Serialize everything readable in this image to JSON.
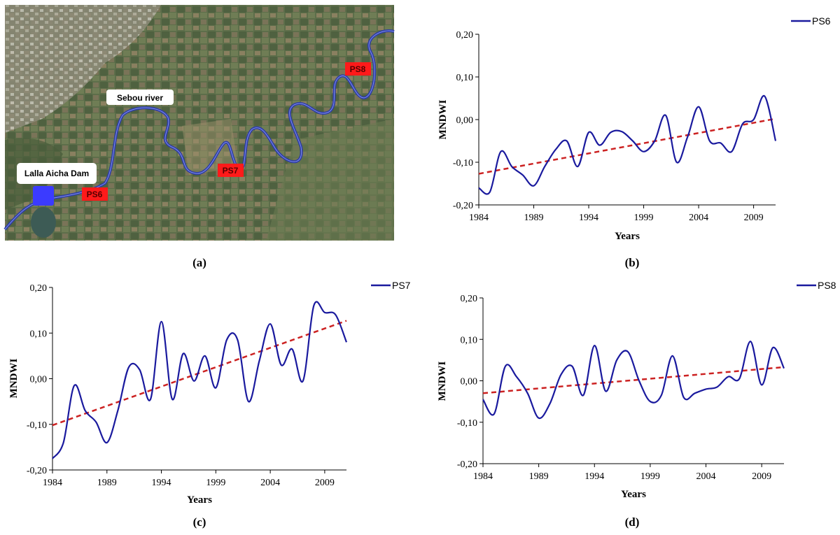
{
  "colors": {
    "series_line": "#1a1a9e",
    "trend_line": "#cc2222",
    "river": "#2b3aa8",
    "site_box": "#ff1a1a",
    "dam": "#3b3bff"
  },
  "map": {
    "caption": "(a)",
    "labels": {
      "river": "Sebou river",
      "dam": "Lalla Aicha Dam"
    },
    "sites": [
      "PS6",
      "PS7",
      "PS8"
    ]
  },
  "chart_data": [
    {
      "type": "line",
      "caption": "(b)",
      "xlabel": "Years",
      "ylabel": "MNDWI",
      "xlim": [
        1984,
        2011
      ],
      "ylim": [
        -0.2,
        0.2
      ],
      "xticks": [
        "1984",
        "1989",
        "1994",
        "1999",
        "2004",
        "2009"
      ],
      "yticks": [
        "-0,20",
        "-0,10",
        "0,00",
        "0,10",
        "0,20"
      ],
      "legend_position": "top-right",
      "series": [
        {
          "name": "PS6",
          "x": [
            1984,
            1985,
            1986,
            1987,
            1988,
            1989,
            1990,
            1991,
            1992,
            1993,
            1994,
            1995,
            1996,
            1997,
            1998,
            1999,
            2000,
            2001,
            2002,
            2003,
            2004,
            2005,
            2006,
            2007,
            2008,
            2009,
            2010,
            2011
          ],
          "y": [
            -0.16,
            -0.17,
            -0.075,
            -0.11,
            -0.13,
            -0.155,
            -0.11,
            -0.07,
            -0.05,
            -0.11,
            -0.03,
            -0.06,
            -0.03,
            -0.028,
            -0.05,
            -0.075,
            -0.05,
            0.01,
            -0.1,
            -0.04,
            0.03,
            -0.05,
            -0.055,
            -0.075,
            -0.01,
            0.0,
            0.055,
            -0.05
          ]
        }
      ],
      "trend": {
        "x": [
          1984,
          2011
        ],
        "y": [
          -0.127,
          0.002
        ]
      }
    },
    {
      "type": "line",
      "caption": "(c)",
      "xlabel": "Years",
      "ylabel": "MNDWI",
      "xlim": [
        1984,
        2011
      ],
      "ylim": [
        -0.2,
        0.2
      ],
      "xticks": [
        "1984",
        "1989",
        "1994",
        "1999",
        "2004",
        "2009"
      ],
      "yticks": [
        "-0,20",
        "-0,10",
        "0,00",
        "0,10",
        "0,20"
      ],
      "legend_position": "top-right",
      "series": [
        {
          "name": "PS7",
          "x": [
            1984,
            1985,
            1986,
            1987,
            1988,
            1989,
            1990,
            1991,
            1992,
            1993,
            1994,
            1995,
            1996,
            1997,
            1998,
            1999,
            2000,
            2001,
            2002,
            2003,
            2004,
            2005,
            2006,
            2007,
            2008,
            2009,
            2010,
            2011
          ],
          "y": [
            -0.175,
            -0.14,
            -0.015,
            -0.07,
            -0.095,
            -0.14,
            -0.07,
            0.025,
            0.02,
            -0.045,
            0.125,
            -0.045,
            0.055,
            -0.005,
            0.05,
            -0.02,
            0.085,
            0.085,
            -0.05,
            0.04,
            0.12,
            0.03,
            0.065,
            -0.005,
            0.16,
            0.145,
            0.14,
            0.08
          ]
        }
      ],
      "trend": {
        "x": [
          1984,
          2011
        ],
        "y": [
          -0.102,
          0.127
        ]
      }
    },
    {
      "type": "line",
      "caption": "(d)",
      "xlabel": "Years",
      "ylabel": "MNDWI",
      "xlim": [
        1984,
        2011
      ],
      "ylim": [
        -0.2,
        0.2
      ],
      "xticks": [
        "1984",
        "1989",
        "1994",
        "1999",
        "2004",
        "2009"
      ],
      "yticks": [
        "-0,20",
        "-0,10",
        "0,00",
        "0,10",
        "0,20"
      ],
      "legend_position": "top-right",
      "series": [
        {
          "name": "PS8",
          "x": [
            1984,
            1985,
            1986,
            1987,
            1988,
            1989,
            1990,
            1991,
            1992,
            1993,
            1994,
            1995,
            1996,
            1997,
            1998,
            1999,
            2000,
            2001,
            2002,
            2003,
            2004,
            2005,
            2006,
            2007,
            2008,
            2009,
            2010,
            2011
          ],
          "y": [
            -0.045,
            -0.08,
            0.035,
            0.01,
            -0.03,
            -0.09,
            -0.055,
            0.015,
            0.035,
            -0.035,
            0.085,
            -0.025,
            0.05,
            0.07,
            0.0,
            -0.05,
            -0.035,
            0.06,
            -0.04,
            -0.03,
            -0.02,
            -0.015,
            0.01,
            0.005,
            0.095,
            -0.01,
            0.08,
            0.03
          ]
        }
      ],
      "trend": {
        "x": [
          1984,
          2011
        ],
        "y": [
          -0.03,
          0.033
        ]
      }
    }
  ]
}
